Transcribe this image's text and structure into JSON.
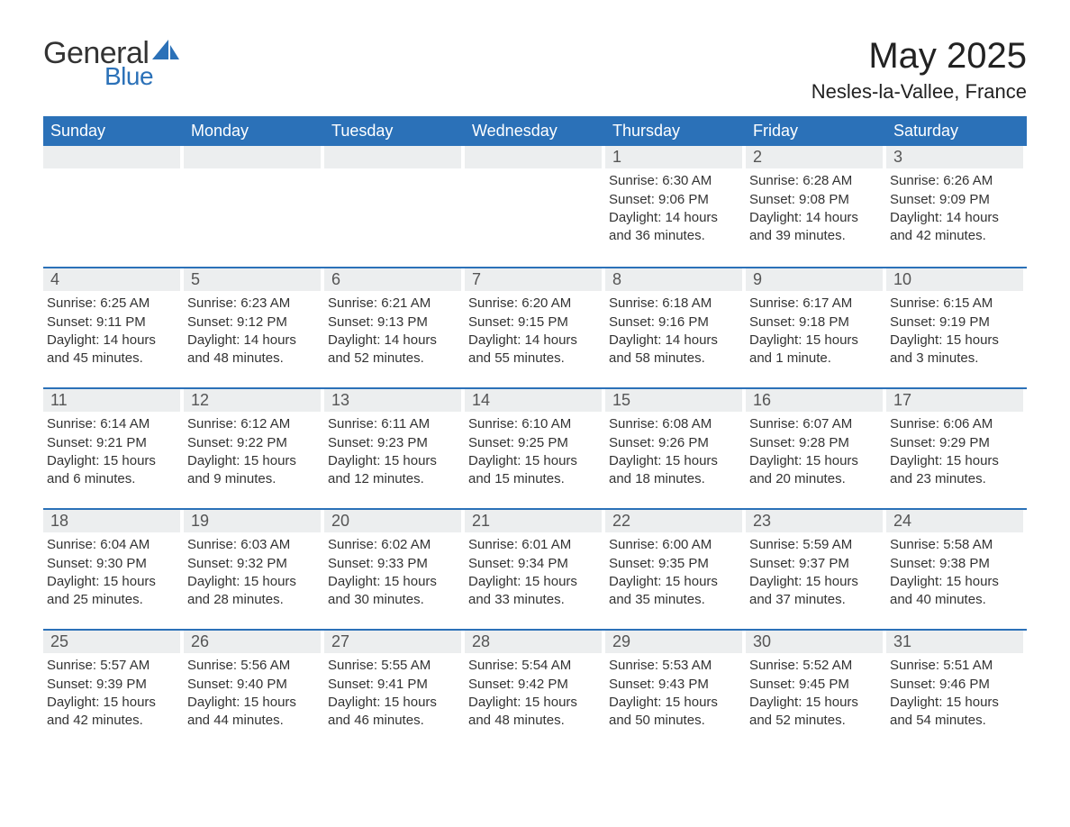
{
  "brand": {
    "part1": "General",
    "part2": "Blue",
    "accent_color": "#2b71b8"
  },
  "title": "May 2025",
  "location": "Nesles-la-Vallee, France",
  "calendar": {
    "type": "table",
    "header_bg": "#2b71b8",
    "header_fg": "#ffffff",
    "daynum_bg": "#eceeef",
    "border_color": "#2b71b8",
    "text_color": "#333333",
    "font_family": "Segoe UI",
    "title_fontsize": 40,
    "location_fontsize": 22,
    "weekday_fontsize": 18,
    "body_fontsize": 15,
    "columns": [
      "Sunday",
      "Monday",
      "Tuesday",
      "Wednesday",
      "Thursday",
      "Friday",
      "Saturday"
    ],
    "weeks": [
      [
        null,
        null,
        null,
        null,
        {
          "n": "1",
          "sr": "6:30 AM",
          "ss": "9:06 PM",
          "dl": "14 hours and 36 minutes."
        },
        {
          "n": "2",
          "sr": "6:28 AM",
          "ss": "9:08 PM",
          "dl": "14 hours and 39 minutes."
        },
        {
          "n": "3",
          "sr": "6:26 AM",
          "ss": "9:09 PM",
          "dl": "14 hours and 42 minutes."
        }
      ],
      [
        {
          "n": "4",
          "sr": "6:25 AM",
          "ss": "9:11 PM",
          "dl": "14 hours and 45 minutes."
        },
        {
          "n": "5",
          "sr": "6:23 AM",
          "ss": "9:12 PM",
          "dl": "14 hours and 48 minutes."
        },
        {
          "n": "6",
          "sr": "6:21 AM",
          "ss": "9:13 PM",
          "dl": "14 hours and 52 minutes."
        },
        {
          "n": "7",
          "sr": "6:20 AM",
          "ss": "9:15 PM",
          "dl": "14 hours and 55 minutes."
        },
        {
          "n": "8",
          "sr": "6:18 AM",
          "ss": "9:16 PM",
          "dl": "14 hours and 58 minutes."
        },
        {
          "n": "9",
          "sr": "6:17 AM",
          "ss": "9:18 PM",
          "dl": "15 hours and 1 minute."
        },
        {
          "n": "10",
          "sr": "6:15 AM",
          "ss": "9:19 PM",
          "dl": "15 hours and 3 minutes."
        }
      ],
      [
        {
          "n": "11",
          "sr": "6:14 AM",
          "ss": "9:21 PM",
          "dl": "15 hours and 6 minutes."
        },
        {
          "n": "12",
          "sr": "6:12 AM",
          "ss": "9:22 PM",
          "dl": "15 hours and 9 minutes."
        },
        {
          "n": "13",
          "sr": "6:11 AM",
          "ss": "9:23 PM",
          "dl": "15 hours and 12 minutes."
        },
        {
          "n": "14",
          "sr": "6:10 AM",
          "ss": "9:25 PM",
          "dl": "15 hours and 15 minutes."
        },
        {
          "n": "15",
          "sr": "6:08 AM",
          "ss": "9:26 PM",
          "dl": "15 hours and 18 minutes."
        },
        {
          "n": "16",
          "sr": "6:07 AM",
          "ss": "9:28 PM",
          "dl": "15 hours and 20 minutes."
        },
        {
          "n": "17",
          "sr": "6:06 AM",
          "ss": "9:29 PM",
          "dl": "15 hours and 23 minutes."
        }
      ],
      [
        {
          "n": "18",
          "sr": "6:04 AM",
          "ss": "9:30 PM",
          "dl": "15 hours and 25 minutes."
        },
        {
          "n": "19",
          "sr": "6:03 AM",
          "ss": "9:32 PM",
          "dl": "15 hours and 28 minutes."
        },
        {
          "n": "20",
          "sr": "6:02 AM",
          "ss": "9:33 PM",
          "dl": "15 hours and 30 minutes."
        },
        {
          "n": "21",
          "sr": "6:01 AM",
          "ss": "9:34 PM",
          "dl": "15 hours and 33 minutes."
        },
        {
          "n": "22",
          "sr": "6:00 AM",
          "ss": "9:35 PM",
          "dl": "15 hours and 35 minutes."
        },
        {
          "n": "23",
          "sr": "5:59 AM",
          "ss": "9:37 PM",
          "dl": "15 hours and 37 minutes."
        },
        {
          "n": "24",
          "sr": "5:58 AM",
          "ss": "9:38 PM",
          "dl": "15 hours and 40 minutes."
        }
      ],
      [
        {
          "n": "25",
          "sr": "5:57 AM",
          "ss": "9:39 PM",
          "dl": "15 hours and 42 minutes."
        },
        {
          "n": "26",
          "sr": "5:56 AM",
          "ss": "9:40 PM",
          "dl": "15 hours and 44 minutes."
        },
        {
          "n": "27",
          "sr": "5:55 AM",
          "ss": "9:41 PM",
          "dl": "15 hours and 46 minutes."
        },
        {
          "n": "28",
          "sr": "5:54 AM",
          "ss": "9:42 PM",
          "dl": "15 hours and 48 minutes."
        },
        {
          "n": "29",
          "sr": "5:53 AM",
          "ss": "9:43 PM",
          "dl": "15 hours and 50 minutes."
        },
        {
          "n": "30",
          "sr": "5:52 AM",
          "ss": "9:45 PM",
          "dl": "15 hours and 52 minutes."
        },
        {
          "n": "31",
          "sr": "5:51 AM",
          "ss": "9:46 PM",
          "dl": "15 hours and 54 minutes."
        }
      ]
    ],
    "labels": {
      "sunrise": "Sunrise:",
      "sunset": "Sunset:",
      "daylight": "Daylight:"
    }
  }
}
